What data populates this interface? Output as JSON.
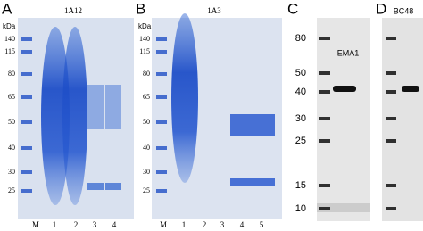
{
  "panels": [
    {
      "letter": "A",
      "title": "1A12",
      "unit": "kDa",
      "markers": [
        "140",
        "115",
        "80",
        "65",
        "50",
        "40",
        "30",
        "25"
      ],
      "lanes": [
        "M",
        "1",
        "2",
        "3",
        "4"
      ]
    },
    {
      "letter": "B",
      "title": "1A3",
      "unit": "kDa",
      "markers": [
        "140",
        "115",
        "80",
        "65",
        "50",
        "40",
        "30",
        "25"
      ],
      "lanes": [
        "M",
        "1",
        "2",
        "3",
        "4",
        "5"
      ]
    },
    {
      "letter": "C",
      "title": "EMA1",
      "markers": [
        "80",
        "50",
        "40",
        "30",
        "25",
        "15",
        "10"
      ]
    },
    {
      "letter": "D",
      "title": "BC48"
    }
  ]
}
